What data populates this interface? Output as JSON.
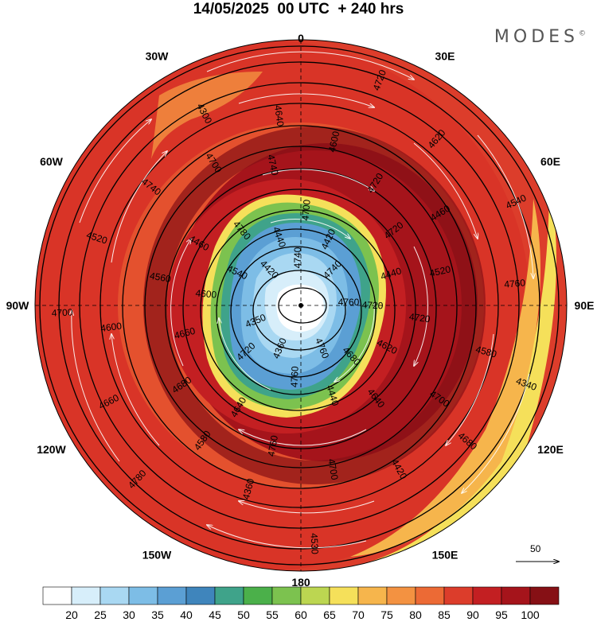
{
  "header": {
    "title": "14/05/2025  00 UTC  + 240 hrs",
    "brand": "MODES",
    "brand_mark": "©"
  },
  "map": {
    "projection": "north-polar-stereographic",
    "longitude_labels": [
      {
        "text": "0",
        "lon": 0
      },
      {
        "text": "30E",
        "lon": 30
      },
      {
        "text": "60E",
        "lon": 60
      },
      {
        "text": "90E",
        "lon": 90
      },
      {
        "text": "120E",
        "lon": 120
      },
      {
        "text": "150E",
        "lon": 150
      },
      {
        "text": "180",
        "lon": 180
      },
      {
        "text": "150W",
        "lon": -150
      },
      {
        "text": "120W",
        "lon": -120
      },
      {
        "text": "90W",
        "lon": -90
      },
      {
        "text": "60W",
        "lon": -60
      },
      {
        "text": "30W",
        "lon": -30
      }
    ],
    "contour_labels": [
      "4760",
      "4720",
      "4700",
      "4640",
      "4560",
      "4460",
      "4360",
      "4300",
      "4340",
      "4350",
      "4420",
      "4440",
      "4460",
      "4520",
      "4580",
      "4640",
      "4680",
      "4700",
      "4740",
      "4760",
      "4780",
      "4720",
      "4680",
      "4600",
      "4420",
      "4520",
      "4540",
      "4360",
      "4440",
      "4620",
      "4660",
      "4720",
      "4700",
      "4740",
      "4760",
      "4780",
      "4740",
      "4680",
      "4600",
      "4720",
      "4760",
      "4700",
      "4580",
      "4660",
      "4720",
      "4760",
      "4540",
      "4440",
      "4640",
      "4740",
      "4700",
      "4600",
      "4620",
      "4530",
      "4420",
      "4720"
    ],
    "wind_reference": {
      "value": "50"
    },
    "colors": {
      "core": "#ffffff",
      "outer_ring": "#d73027",
      "jet": "#a50f15"
    }
  },
  "colorbar": {
    "ticks": [
      "20",
      "25",
      "30",
      "35",
      "40",
      "45",
      "50",
      "55",
      "60",
      "65",
      "70",
      "75",
      "80",
      "85",
      "90",
      "95",
      "100"
    ],
    "colors": [
      "#ffffff",
      "#d7eefa",
      "#a9d8f2",
      "#7dbde6",
      "#5b9fd4",
      "#3f85bc",
      "#3fa38a",
      "#4bb04a",
      "#7cc24f",
      "#bcd651",
      "#f5e05a",
      "#f6b54c",
      "#f39241",
      "#ec6a35",
      "#dc3d2b",
      "#c31f22",
      "#a5141b",
      "#861015"
    ]
  }
}
